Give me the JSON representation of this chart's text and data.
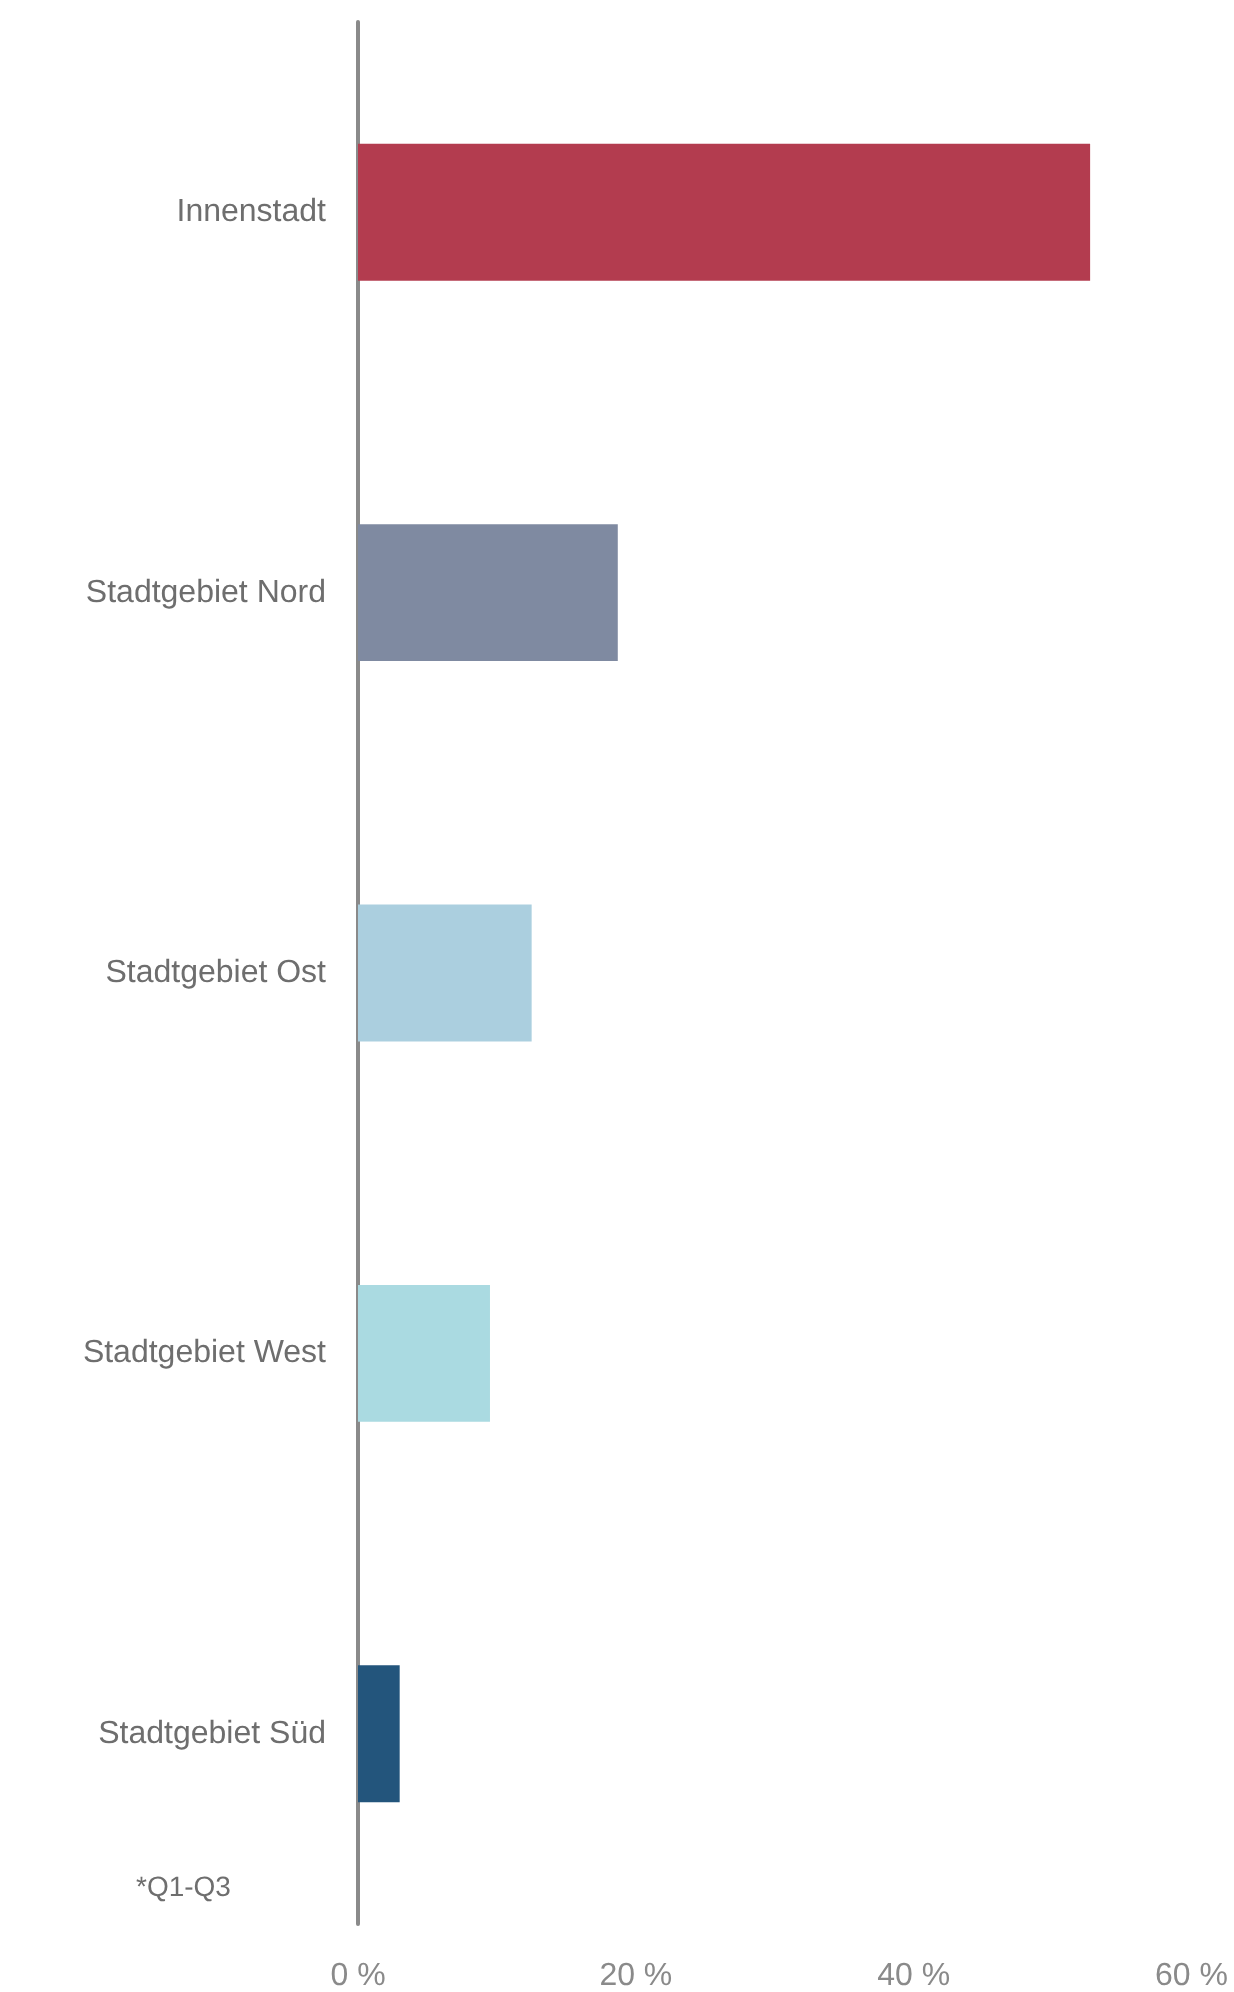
{
  "chart_data": {
    "type": "bar",
    "orientation": "horizontal",
    "categories": [
      "Innenstadt",
      "Stadtgebiet Nord",
      "Stadtgebiet Ost",
      "Stadtgebiet West",
      "Stadtgebiet Süd"
    ],
    "values": [
      52.7,
      18.7,
      12.5,
      9.5,
      3.0
    ],
    "colors": [
      "#b33c4f",
      "#7f8aa1",
      "#abcfdf",
      "#aadae1",
      "#23557c"
    ],
    "xlim": [
      0,
      60
    ],
    "xticks": [
      {
        "value": 0,
        "label": "0 %"
      },
      {
        "value": 20,
        "label": "20 %"
      },
      {
        "value": 40,
        "label": "40 %"
      },
      {
        "value": 60,
        "label": "60 %"
      }
    ],
    "grid": false,
    "annotations": [
      "*Q1-Q3"
    ]
  }
}
